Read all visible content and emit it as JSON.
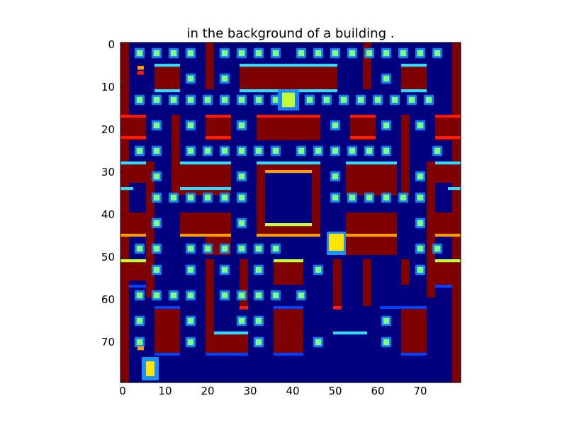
{
  "figure": {
    "title": "in the background of a building ."
  },
  "axes": {
    "x_ticks": [
      "0",
      "10",
      "20",
      "30",
      "40",
      "50",
      "60",
      "70"
    ],
    "y_ticks": [
      "0",
      "10",
      "20",
      "30",
      "40",
      "50",
      "60",
      "70"
    ]
  },
  "colors": {
    "floor": "#00007f",
    "wall": "#7f0000",
    "pellet": "#7fff7f",
    "pellet_halo": "#1a8fff",
    "wall_edge_top": "#36d9ff",
    "wall_edge_bottom": "#ff1d00",
    "wall_edge_orange": "#ff9d00",
    "wall_edge_yellow": "#c1ff36",
    "wall_edge_blue": "#0040ff",
    "player": "#ffe500",
    "frame": "#000000"
  },
  "game_view": {
    "grid_size": 80,
    "entities": [
      "pacman-maze",
      "pellets",
      "player-sprite",
      "ghost-sprite"
    ]
  }
}
